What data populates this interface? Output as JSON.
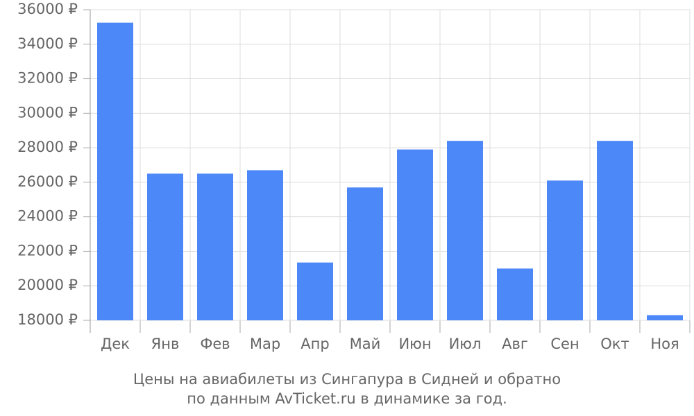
{
  "chart_data": {
    "type": "bar",
    "title_lines": [
      "Цены на авиабилеты из Сингапура в Сидней и обратно",
      "по данным AvTicket.ru в динамике за год."
    ],
    "categories": [
      "Дек",
      "Янв",
      "Фев",
      "Мар",
      "Апр",
      "Май",
      "Июн",
      "Июл",
      "Авг",
      "Сен",
      "Окт",
      "Ноя"
    ],
    "values": [
      35250,
      26500,
      26500,
      26700,
      21350,
      25700,
      27900,
      28400,
      21000,
      26100,
      28400,
      18300
    ],
    "color": "#4d88f9",
    "ylim": [
      18000,
      36000
    ],
    "yticks": [
      {
        "value": 18000,
        "label": "18000 ₽"
      },
      {
        "value": 20000,
        "label": "20000 ₽"
      },
      {
        "value": 22000,
        "label": "22000 ₽"
      },
      {
        "value": 24000,
        "label": "24000 ₽"
      },
      {
        "value": 26000,
        "label": "26000 ₽"
      },
      {
        "value": 28000,
        "label": "28000 ₽"
      },
      {
        "value": 30000,
        "label": "30000 ₽"
      },
      {
        "value": 32000,
        "label": "32000 ₽"
      },
      {
        "value": 34000,
        "label": "34000 ₽"
      },
      {
        "value": 36000,
        "label": "36000 ₽"
      }
    ],
    "grid": true
  }
}
